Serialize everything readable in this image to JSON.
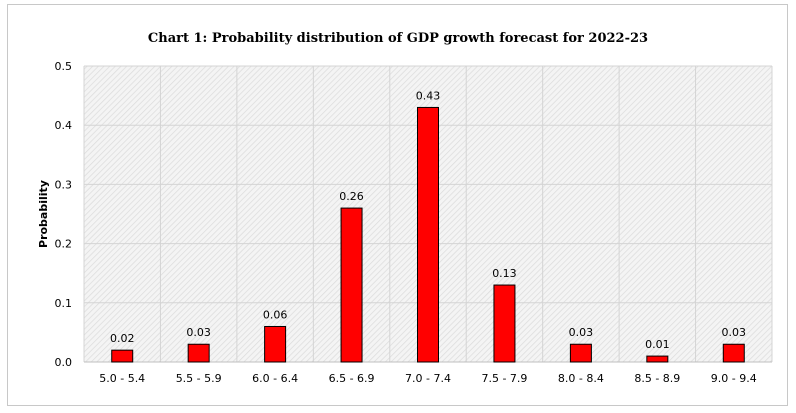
{
  "chart_data": {
    "type": "bar",
    "title": "Chart 1: Probability distribution of  GDP growth forecast for 2022-23",
    "xlabel": "",
    "ylabel": "Probability",
    "categories": [
      "5.0 - 5.4",
      "5.5 - 5.9",
      "6.0 - 6.4",
      "6.5 - 6.9",
      "7.0 - 7.4",
      "7.5 - 7.9",
      "8.0 - 8.4",
      "8.5 - 8.9",
      "9.0 - 9.4"
    ],
    "values": [
      0.02,
      0.03,
      0.06,
      0.26,
      0.43,
      0.13,
      0.03,
      0.01,
      0.03
    ],
    "labels": [
      "0.02",
      "0.03",
      "0.06",
      "0.26",
      "0.43",
      "0.13",
      "0.03",
      "0.01",
      "0.03"
    ],
    "ylim": [
      0,
      0.5
    ],
    "yticks": [
      "0.0",
      "0.1",
      "0.2",
      "0.3",
      "0.4",
      "0.5"
    ],
    "grid": true,
    "bar_color": "#ff0000",
    "bar_edge_color": "#000000",
    "legend": "none"
  }
}
